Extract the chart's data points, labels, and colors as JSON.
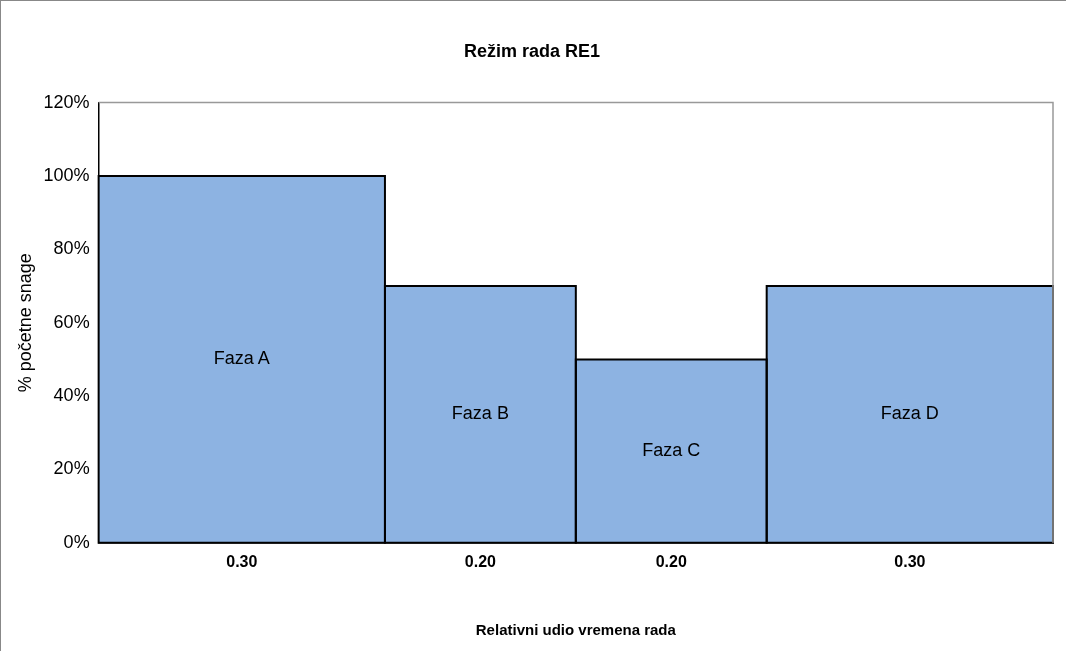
{
  "chart_data": {
    "type": "bar",
    "title": "Režim rada RE1",
    "xlabel": "Relativni udio vremena rada",
    "ylabel": "% početne snage",
    "categories": [
      "0.30",
      "0.20",
      "0.20",
      "0.30"
    ],
    "values": [
      100,
      70,
      50,
      70
    ],
    "color": "#8db3e2",
    "ylim": [
      0,
      120
    ],
    "yticks": [
      {
        "value": 0,
        "label": "0%"
      },
      {
        "value": 20,
        "label": "20%"
      },
      {
        "value": 40,
        "label": "40%"
      },
      {
        "value": 60,
        "label": "60%"
      },
      {
        "value": 80,
        "label": "80%"
      },
      {
        "value": 100,
        "label": "100%"
      },
      {
        "value": 120,
        "label": "120%"
      }
    ],
    "annotations": [
      "Faza A",
      "Faza B",
      "Faza C",
      "Faza D"
    ],
    "grid": false,
    "legend": false
  }
}
